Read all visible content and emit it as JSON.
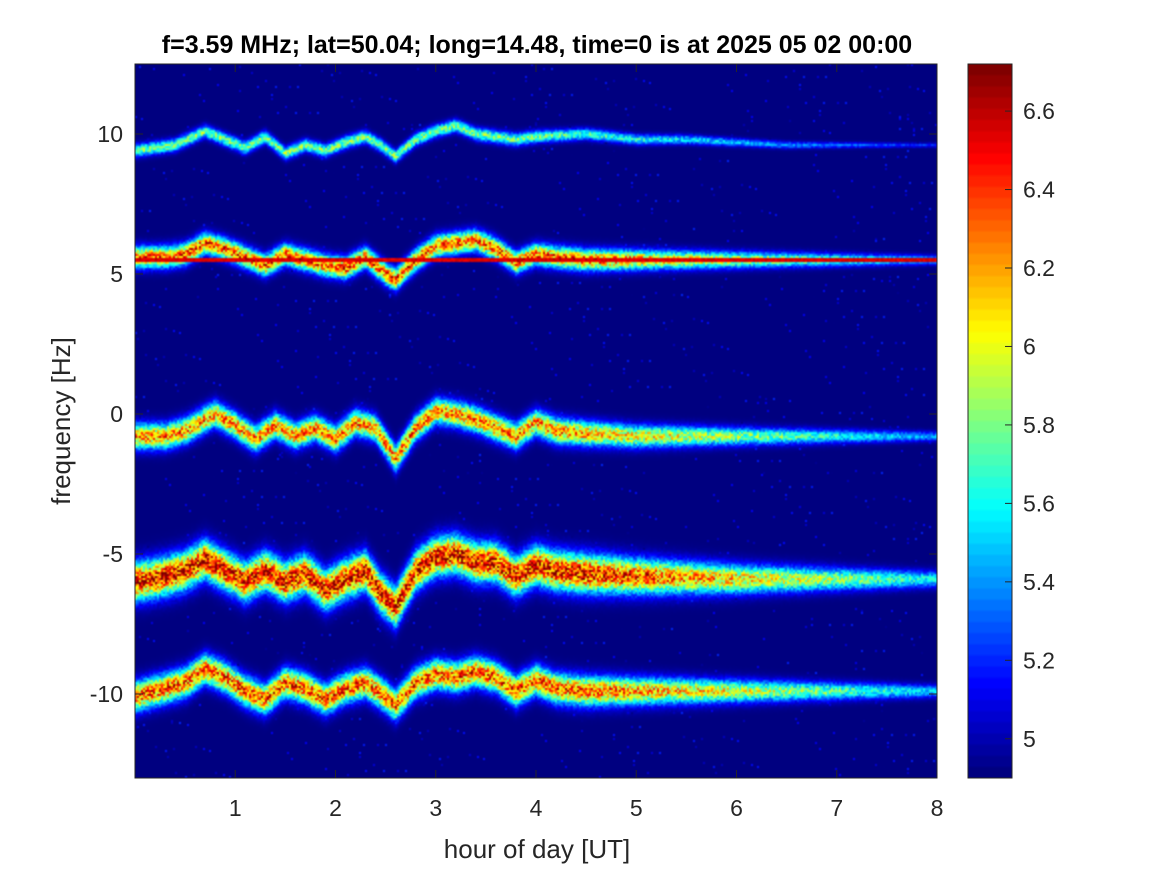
{
  "chart_data": {
    "type": "heatmap",
    "title": "f=3.59 MHz;  lat=50.04; long=14.48, time=0 is at 2025 05 02 00:00",
    "xlabel": "hour of day [UT]",
    "ylabel": "frequency [Hz]",
    "xlim": [
      0,
      8
    ],
    "ylim": [
      -13,
      12.5
    ],
    "xticks": [
      1,
      2,
      3,
      4,
      5,
      6,
      7,
      8
    ],
    "yticks": [
      -10,
      -5,
      0,
      5,
      10
    ],
    "colormap": "jet",
    "background_color": "#00008f",
    "colorbar": {
      "clim": [
        4.9,
        6.72
      ],
      "ticks": [
        5,
        5.2,
        5.4,
        5.6,
        5.8,
        6,
        6.2,
        6.4,
        6.6
      ],
      "location": "right"
    },
    "traces": [
      {
        "center_hz": 10,
        "x": [
          0,
          0.4,
          0.7,
          0.9,
          1.1,
          1.3,
          1.5,
          1.7,
          1.9,
          2.1,
          2.3,
          2.45,
          2.6,
          2.8,
          3.0,
          3.2,
          3.4,
          3.6,
          3.8,
          4.0,
          4.5,
          5.0,
          5.5,
          6.0,
          6.5,
          7.0,
          7.4
        ],
        "y": [
          9.4,
          9.6,
          10.1,
          9.8,
          9.5,
          9.9,
          9.3,
          9.6,
          9.4,
          9.7,
          9.9,
          9.6,
          9.2,
          9.8,
          10.1,
          10.3,
          10.0,
          9.9,
          9.8,
          9.9,
          10.0,
          9.8,
          9.8,
          9.7,
          9.6,
          9.6,
          9.6
        ],
        "peak": 5.9,
        "width": 0.15,
        "fade_start": 3.8
      },
      {
        "center_hz": 5.5,
        "x": [
          0,
          0.3,
          0.5,
          0.7,
          0.9,
          1.1,
          1.3,
          1.5,
          1.7,
          1.9,
          2.1,
          2.3,
          2.5,
          2.6,
          2.8,
          3.0,
          3.2,
          3.4,
          3.6,
          3.8,
          4.0,
          4.2,
          4.5,
          5.0,
          6.0,
          8.0
        ],
        "y": [
          5.6,
          5.6,
          5.7,
          6.1,
          5.9,
          5.6,
          5.3,
          5.7,
          5.5,
          5.3,
          5.2,
          5.6,
          5.0,
          4.8,
          5.5,
          6.0,
          6.1,
          6.2,
          5.9,
          5.4,
          5.7,
          5.6,
          5.5,
          5.5,
          5.5,
          5.5
        ],
        "peak": 6.5,
        "width": 0.25,
        "fade_start": 4.5
      },
      {
        "center_hz": 0,
        "x": [
          0,
          0.3,
          0.5,
          0.7,
          0.8,
          1.0,
          1.2,
          1.4,
          1.6,
          1.8,
          2.0,
          2.2,
          2.4,
          2.6,
          2.8,
          3.0,
          3.2,
          3.4,
          3.6,
          3.8,
          4.0,
          4.2,
          4.5,
          5.0,
          6.0,
          7.0,
          8.0
        ],
        "y": [
          -0.8,
          -0.8,
          -0.6,
          -0.2,
          0.0,
          -0.4,
          -0.9,
          -0.4,
          -0.8,
          -0.5,
          -0.9,
          -0.3,
          -0.5,
          -1.6,
          -0.5,
          0.1,
          0.0,
          -0.2,
          -0.5,
          -0.8,
          -0.3,
          -0.6,
          -0.7,
          -0.8,
          -0.8,
          -0.8,
          -0.8
        ],
        "peak": 6.4,
        "width": 0.3,
        "fade_start": 4.2
      },
      {
        "center_hz": -5,
        "x": [
          0,
          0.3,
          0.5,
          0.7,
          0.9,
          1.1,
          1.3,
          1.5,
          1.7,
          1.9,
          2.1,
          2.3,
          2.45,
          2.6,
          2.8,
          3.0,
          3.2,
          3.4,
          3.6,
          3.8,
          4.0,
          4.2,
          4.5,
          5.0,
          6.0,
          7.0,
          8.0
        ],
        "y": [
          -6.0,
          -5.8,
          -5.6,
          -5.2,
          -5.6,
          -6.0,
          -5.6,
          -6.0,
          -5.7,
          -6.3,
          -5.9,
          -5.6,
          -6.4,
          -6.9,
          -5.6,
          -5.1,
          -5.0,
          -5.3,
          -5.3,
          -5.8,
          -5.4,
          -5.6,
          -5.7,
          -5.8,
          -5.9,
          -5.9,
          -5.9
        ],
        "peak": 6.7,
        "width": 0.45,
        "fade_start": 4.5
      },
      {
        "center_hz": -10,
        "x": [
          0,
          0.3,
          0.5,
          0.7,
          0.9,
          1.1,
          1.3,
          1.5,
          1.7,
          1.9,
          2.1,
          2.3,
          2.5,
          2.6,
          2.8,
          3.0,
          3.2,
          3.4,
          3.6,
          3.8,
          4.0,
          4.2,
          4.5,
          5.0,
          6.0,
          7.0,
          8.0
        ],
        "y": [
          -10.1,
          -9.8,
          -9.6,
          -9.1,
          -9.4,
          -9.9,
          -10.2,
          -9.6,
          -9.8,
          -10.2,
          -9.8,
          -9.6,
          -10.1,
          -10.4,
          -9.6,
          -9.3,
          -9.4,
          -9.2,
          -9.4,
          -9.9,
          -9.5,
          -9.8,
          -9.9,
          -9.9,
          -9.9,
          -9.9,
          -9.9
        ],
        "peak": 6.5,
        "width": 0.35,
        "fade_start": 4.5
      }
    ],
    "constant_line": {
      "y": 5.5,
      "x_from": 0,
      "x_to": 8,
      "value": 6.6
    }
  }
}
